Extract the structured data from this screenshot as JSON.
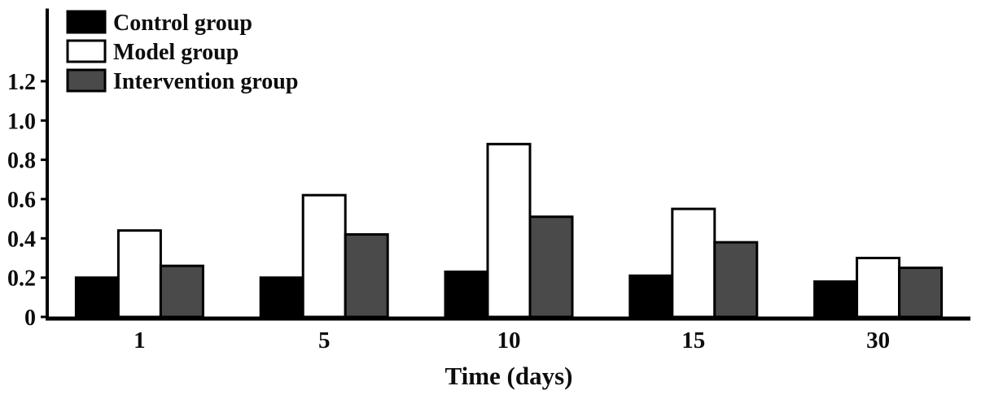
{
  "figure": {
    "background": "#ffffff",
    "axis_color": "#000000",
    "text_color": "#0d0d0d"
  },
  "chart_data": {
    "type": "bar",
    "title": "",
    "xlabel": "Time (days)",
    "ylabel": "",
    "categories": [
      "1",
      "5",
      "10",
      "15",
      "30"
    ],
    "series": [
      {
        "name": "Control group",
        "color": "#000000",
        "values": [
          0.2,
          0.2,
          0.23,
          0.21,
          0.18
        ]
      },
      {
        "name": "Model group",
        "color": "#ffffff",
        "values": [
          0.44,
          0.62,
          0.88,
          0.55,
          0.3
        ]
      },
      {
        "name": "Intervention group",
        "color": "#4a4a4a",
        "values": [
          0.26,
          0.42,
          0.51,
          0.38,
          0.25
        ]
      }
    ],
    "ylim": [
      0,
      1.57
    ],
    "yticks": [
      0,
      0.2,
      0.4,
      0.6,
      0.8,
      1.0,
      1.2
    ],
    "ytick_labels": [
      "0",
      "0.2",
      "0.4",
      "0.6",
      "0.8",
      "1.0",
      "1.2"
    ],
    "bar_border_color": "#000000",
    "grid": false,
    "legend_position": "top-left"
  }
}
